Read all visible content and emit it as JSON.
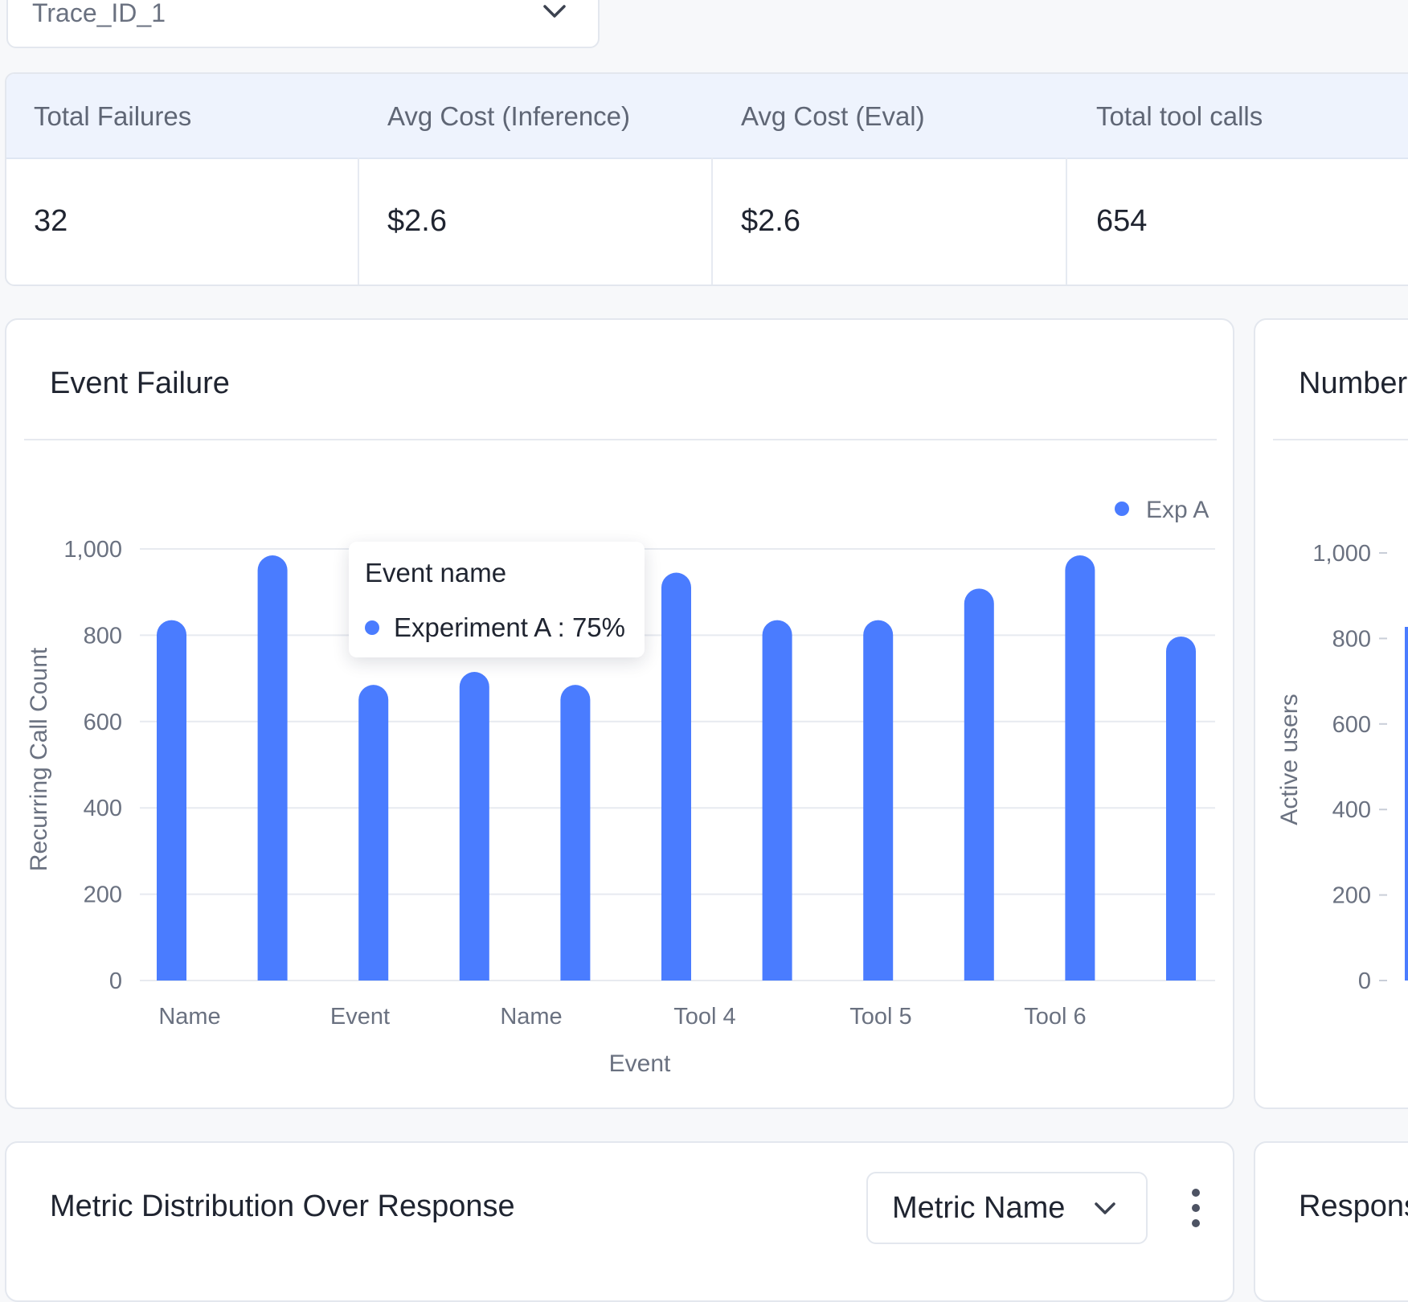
{
  "trace_select": {
    "value": "Trace_ID_1",
    "icon": "chevron-down-icon"
  },
  "stats": {
    "headers": [
      "Total Failures",
      "Avg Cost (Inference)",
      "Avg Cost (Eval)",
      "Total tool calls"
    ],
    "values": [
      "32",
      "$2.6",
      "$2.6",
      "654"
    ]
  },
  "event_failure_card": {
    "title": "Event Failure",
    "tooltip": {
      "title": "Event name",
      "row": "Experiment A : 75%"
    },
    "chart_data": {
      "type": "bar",
      "title": "Event Failure",
      "xlabel": "Event",
      "ylabel": "Recurring Call Count",
      "ylim": [
        0,
        1000
      ],
      "yticks": [
        0,
        200,
        400,
        600,
        800,
        "1,000"
      ],
      "x_tick_labels": [
        "Name",
        "Event",
        "Name",
        "Tool 4",
        "Tool 5",
        "Tool 6"
      ],
      "legend": {
        "placement": "top-right",
        "entries": [
          "Exp A"
        ]
      },
      "grid": true,
      "color": "#4a7cff",
      "series": [
        {
          "name": "Exp A",
          "values": [
            835,
            985,
            685,
            715,
            685,
            945,
            835,
            835,
            908,
            985,
            797
          ]
        }
      ]
    }
  },
  "users_card": {
    "title": "Number",
    "ylabel": "Active users",
    "yticks": [
      0,
      200,
      400,
      600,
      800,
      "1,000"
    ]
  },
  "metric_card": {
    "title": "Metric Distribution Over Response",
    "select_value": "Metric Name",
    "menu_icon": "kebab-menu-icon"
  },
  "response_card": {
    "title": "Respons"
  }
}
